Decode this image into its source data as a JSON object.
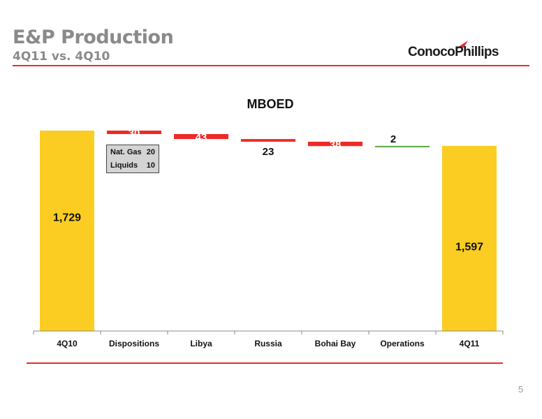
{
  "header": {
    "title": "E&P Production",
    "subtitle": "4Q11 vs. 4Q10",
    "logo": "ConocoPhillips"
  },
  "page_number": "5",
  "colors": {
    "total_bar": "#fbcd22",
    "decrease_bar": "#ee2a26",
    "increase_bar": "#5aa646",
    "rule_line": "#e03030",
    "header_text": "#8a8a8a"
  },
  "chart_data": {
    "type": "bar",
    "subtype": "waterfall",
    "title": "MBOED",
    "categories": [
      "4Q10",
      "Dispositions",
      "Libya",
      "Russia",
      "Bohai Bay",
      "Operations",
      "4Q11"
    ],
    "steps": [
      {
        "category": "4Q10",
        "kind": "total",
        "value": 1729,
        "label": "1,729"
      },
      {
        "category": "Dispositions",
        "kind": "decrease",
        "value": -30,
        "label": "30"
      },
      {
        "category": "Libya",
        "kind": "decrease",
        "value": -43,
        "label": "43"
      },
      {
        "category": "Russia",
        "kind": "decrease",
        "value": -23,
        "label": "23"
      },
      {
        "category": "Bohai Bay",
        "kind": "decrease",
        "value": -38,
        "label": "38"
      },
      {
        "category": "Operations",
        "kind": "increase",
        "value": 2,
        "label": "2"
      },
      {
        "category": "4Q11",
        "kind": "total",
        "value": 1597,
        "label": "1,597"
      }
    ],
    "breakdown": {
      "category": "Dispositions",
      "items": [
        {
          "label": "Nat. Gas",
          "value": "20"
        },
        {
          "label": "Liquids",
          "value": "10"
        }
      ]
    },
    "legend": "none",
    "grid": false
  }
}
